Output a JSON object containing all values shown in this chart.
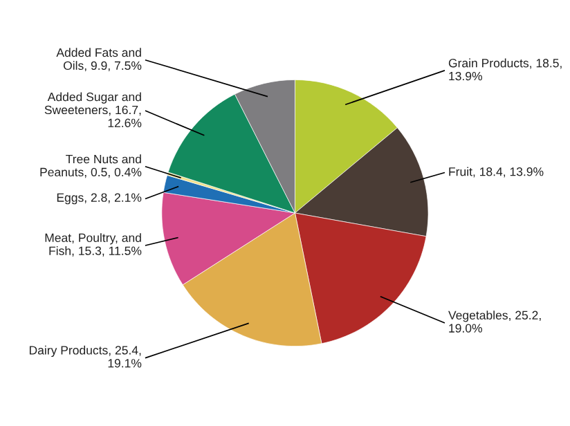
{
  "chart_data": {
    "type": "pie",
    "categories": [
      "Grain Products",
      "Fruit",
      "Vegetables",
      "Dairy Products",
      "Meat, Poultry, and Fish",
      "Eggs",
      "Tree Nuts and Peanuts",
      "Added Sugar and Sweeteners",
      "Added Fats and Oils"
    ],
    "values": [
      18.5,
      18.4,
      25.2,
      25.4,
      15.3,
      2.8,
      0.5,
      16.7,
      9.9
    ],
    "value_labels": [
      "18.5, 13.9%",
      "18.4, 13.9%",
      "25.2, 19.0%",
      "25.4, 19.1%",
      "15.3, 11.5%",
      "2.8, 2.1%",
      "0.5, 0.4%",
      "16.7, 12.6%",
      "9.9, 7.5%"
    ],
    "colors": [
      "#b5c935",
      "#4a3c35",
      "#b22a27",
      "#e0ad4c",
      "#d64b8a",
      "#1f6fb5",
      "#f0e08a",
      "#138a5e",
      "#7e7d80"
    ]
  }
}
